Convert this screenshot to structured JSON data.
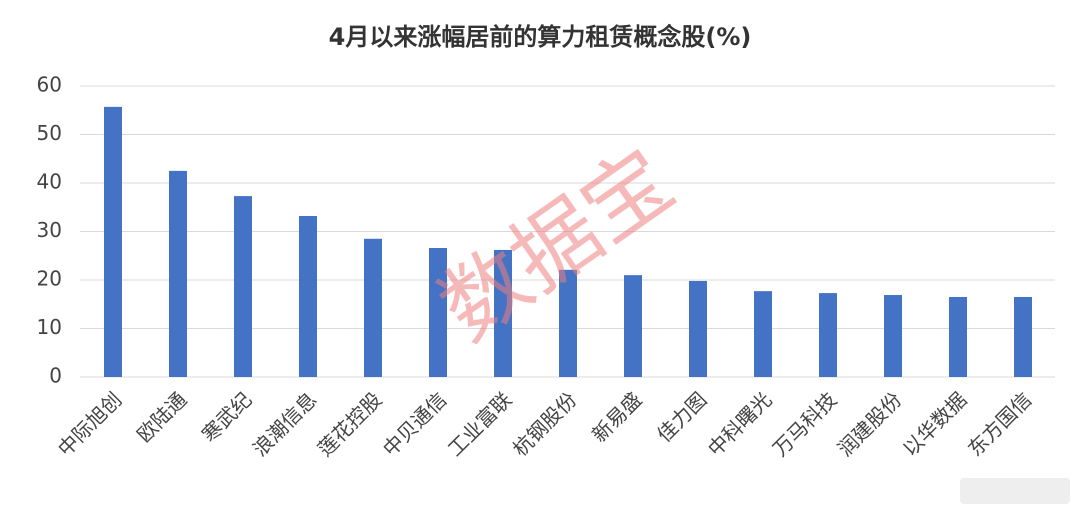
{
  "chart_data": {
    "type": "bar",
    "title": "4月以来涨幅居前的算力租赁概念股(%)",
    "categories": [
      "中际旭创",
      "欧陆通",
      "寒武纪",
      "浪潮信息",
      "莲花控股",
      "中贝通信",
      "工业富联",
      "杭钢股份",
      "新易盛",
      "佳力图",
      "中科曙光",
      "万马科技",
      "润建股份",
      "以华数据",
      "东方国信"
    ],
    "values": [
      55.7,
      42.5,
      37.3,
      33.2,
      28.5,
      26.6,
      26.2,
      22.1,
      21.0,
      19.8,
      17.7,
      17.3,
      16.9,
      16.5,
      16.5
    ],
    "color": "#4472c4",
    "ylim": [
      0,
      60
    ],
    "yticks": [
      0,
      10,
      20,
      30,
      40,
      50,
      60
    ],
    "grid": true,
    "watermark": "数据宝"
  }
}
